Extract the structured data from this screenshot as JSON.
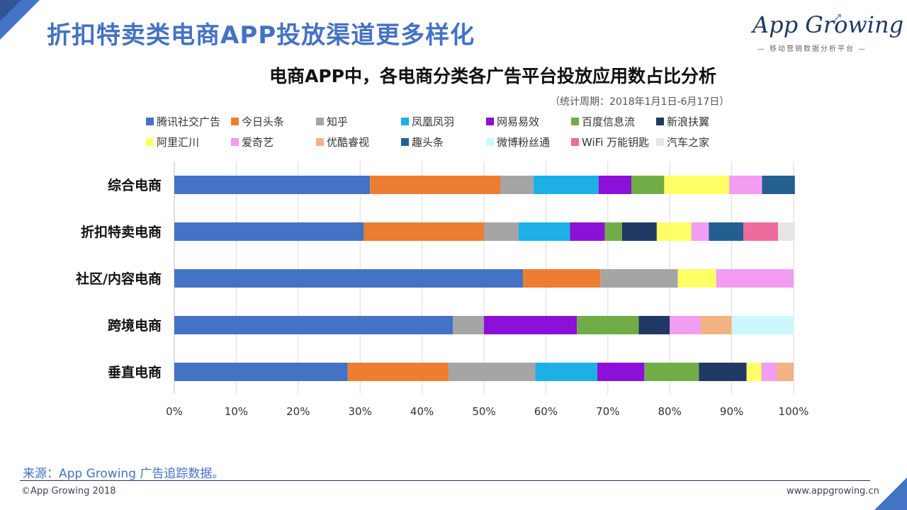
{
  "header": {
    "page_title": "折扣特卖类电商APP投放渠道更多样化"
  },
  "logo": {
    "main_text": "App Growing",
    "sub_text": "— 移动营销数据分析平台 —"
  },
  "footer": {
    "source": "来源：App Growing 广告追踪数据。",
    "copyright": "©App Growing 2018",
    "website": "www.appgrowing.cn"
  },
  "colors": {
    "accent": "#4472c4",
    "dark_accent": "#1f3864"
  },
  "chart_data": {
    "type": "bar",
    "orientation": "horizontal",
    "stacked": true,
    "title": "电商APP中，各电商分类各广告平台投放应用数占比分析",
    "subtitle": "（统计周期：2018年1月1日-6月17日）",
    "xlabel": "",
    "ylabel": "",
    "xlim": [
      0,
      100
    ],
    "x_tick_labels": [
      "0%",
      "10%",
      "20%",
      "30%",
      "40%",
      "50%",
      "60%",
      "70%",
      "80%",
      "90%",
      "100%"
    ],
    "grid": true,
    "legend_position": "top",
    "categories": [
      "综合电商",
      "折扣特卖电商",
      "社区/内容电商",
      "跨境电商",
      "垂直电商"
    ],
    "series": [
      {
        "name": "腾讯社交广告",
        "color": "#4472c4",
        "values": [
          31.6,
          30.6,
          56.3,
          45.0,
          28.0
        ]
      },
      {
        "name": "今日头条",
        "color": "#ed7d31",
        "values": [
          21.1,
          19.4,
          12.5,
          0,
          16.3
        ]
      },
      {
        "name": "知乎",
        "color": "#a5a5a5",
        "values": [
          5.3,
          5.6,
          12.5,
          5.0,
          14.0
        ]
      },
      {
        "name": "凤凰凤羽",
        "color": "#1cb0e6",
        "values": [
          10.5,
          8.3,
          0,
          0,
          10.0
        ]
      },
      {
        "name": "网易易效",
        "color": "#8b10d8",
        "values": [
          5.3,
          5.6,
          0,
          15.0,
          7.6
        ]
      },
      {
        "name": "百度信息流",
        "color": "#70ad47",
        "values": [
          5.3,
          2.8,
          0,
          10.0,
          8.8
        ]
      },
      {
        "name": "新浪扶翼",
        "color": "#203864",
        "values": [
          0,
          5.6,
          0,
          5.0,
          7.7
        ]
      },
      {
        "name": "阿里汇川",
        "color": "#ffff66",
        "values": [
          10.5,
          5.6,
          6.2,
          0,
          2.4
        ]
      },
      {
        "name": "爱奇艺",
        "color": "#f29cf2",
        "values": [
          5.3,
          2.8,
          12.5,
          5.0,
          2.5
        ]
      },
      {
        "name": "优酷睿视",
        "color": "#f4b183",
        "values": [
          0,
          0,
          0,
          5.0,
          2.7
        ]
      },
      {
        "name": "趣头条",
        "color": "#255e91",
        "values": [
          5.3,
          5.6,
          0,
          0,
          0
        ]
      },
      {
        "name": "微博粉丝通",
        "color": "#ccf7fc",
        "values": [
          0,
          0,
          0,
          10.0,
          0
        ]
      },
      {
        "name": "WiFi 万能钥匙",
        "color": "#ee6b9e",
        "values": [
          0,
          5.6,
          0,
          0,
          0
        ]
      },
      {
        "name": "汽车之家",
        "color": "#e7e6e6",
        "values": [
          0,
          2.7,
          0,
          0,
          0
        ]
      }
    ]
  }
}
